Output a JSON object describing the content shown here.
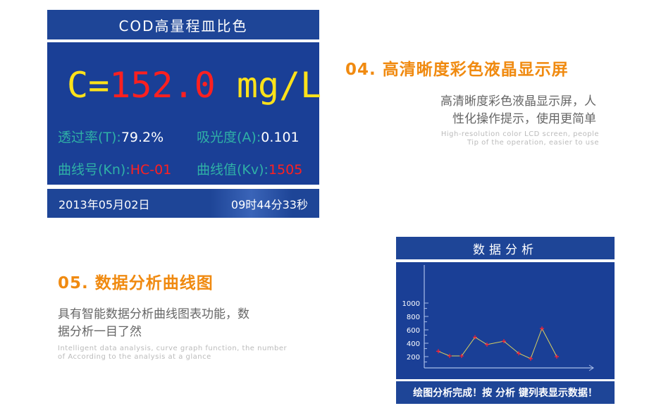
{
  "lcd": {
    "title": "COD高量程皿比色",
    "c_label": "C=",
    "c_value": "152.0",
    "c_unit": "mg/L",
    "trans_label": "透过率(T):",
    "trans_value": "79.2%",
    "abs_label": "吸光度(A):",
    "abs_value": "0.101",
    "curve_label": "曲线号(Kn):",
    "curve_value": "HC-01",
    "cv_label": "曲线值(Kv):",
    "cv_value": "1505",
    "date": "2013年05月02日",
    "time": "09时44分33秒"
  },
  "section04": {
    "heading": "04. 高清晰度彩色液晶显示屏",
    "desc1": "高清晰度彩色液晶显示屏，人",
    "desc2": "性化操作提示，使用更简单",
    "en1": "High-resolution color LCD screen, people",
    "en2": "Tip of the operation, easier to use"
  },
  "section05": {
    "heading": "05. 数据分析曲线图",
    "desc1": "具有智能数据分析曲线图表功能，数",
    "desc2": "据分析一目了然",
    "en1": "Intelligent data analysis, curve graph function, the number",
    "en2": "of According to the analysis at a glance"
  },
  "chart_panel": {
    "title": "数据分析",
    "footer": "绘图分析完成！按 分析 键列表显示数据！"
  },
  "chart_data": {
    "type": "line",
    "y_ticks": [
      "1000",
      "800",
      "600",
      "400",
      "200"
    ],
    "ylim": [
      0,
      1100
    ],
    "values": [
      280,
      210,
      210,
      490,
      380,
      430,
      250,
      170,
      620,
      200
    ],
    "line_color": "#d8d060",
    "marker_color": "#ff2030"
  }
}
